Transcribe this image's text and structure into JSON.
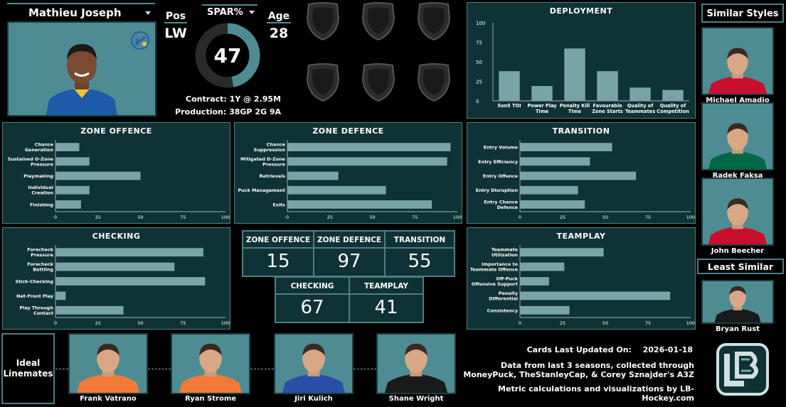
{
  "player": {
    "name": "Mathieu Joseph",
    "pos_label": "Pos",
    "pos": "LW",
    "age_label": "Age",
    "age": "28",
    "spar_label": "SPAR%",
    "spar": "47",
    "spar_value": 47,
    "contract": "Contract:  1Y @ 2.95M",
    "production": "Production:  38GP 2G 9A",
    "team_logo": "blues-note-icon"
  },
  "deployment": {
    "title": "DEPLOYMENT",
    "type": "bar",
    "categories": [
      "5on5 TOI",
      "Power Play Time",
      "Penalty Kill Time",
      "Favourable Zone Starts",
      "Quality of Teammates",
      "Quality of Competition"
    ],
    "values": [
      38,
      19,
      67,
      38,
      17,
      14
    ],
    "ylim": [
      0,
      100
    ],
    "yticks": [
      "100",
      "75",
      "50",
      "25",
      "0"
    ]
  },
  "panels": [
    {
      "key": "zone-offence",
      "title": "ZONE OFFENCE",
      "type": "bar",
      "orientation": "horizontal",
      "categories": [
        "Chance Generation",
        "Sustained O-Zone Pressure",
        "Playmaking",
        "Individual Creation",
        "Finishing"
      ],
      "values": [
        14,
        20,
        50,
        20,
        15
      ],
      "xlim": [
        0,
        100
      ]
    },
    {
      "key": "zone-defence",
      "title": "ZONE DEFENCE",
      "type": "bar",
      "orientation": "horizontal",
      "categories": [
        "Chance Suppression",
        "Mitigated D-Zone Pressure",
        "Retrievals",
        "Puck Management",
        "Exits"
      ],
      "values": [
        96,
        94,
        30,
        58,
        85
      ],
      "xlim": [
        0,
        100
      ]
    },
    {
      "key": "transition",
      "title": "TRANSITION",
      "type": "bar",
      "orientation": "horizontal",
      "categories": [
        "Entry Volume",
        "Entry Efficiency",
        "Entry Offence",
        "Entry Disruption",
        "Entry Chance Defence"
      ],
      "values": [
        54,
        41,
        68,
        34,
        38
      ],
      "xlim": [
        0,
        100
      ]
    },
    {
      "key": "checking",
      "title": "CHECKING",
      "type": "bar",
      "orientation": "horizontal",
      "categories": [
        "Forecheck Pressure",
        "Forecheck Battling",
        "Stick-Checking",
        "Net-Front Play",
        "Play Through Contact"
      ],
      "values": [
        87,
        70,
        88,
        6,
        40
      ],
      "xlim": [
        0,
        100
      ]
    },
    {
      "key": "teamplay",
      "title": "TEAMPLAY",
      "type": "bar",
      "orientation": "horizontal",
      "categories": [
        "Teammate Utilization",
        "Importance to Teammate Offence",
        "Off-Puck Offensive Support",
        "Penalty Differential",
        "Consistency"
      ],
      "values": [
        49,
        26,
        17,
        88,
        29
      ],
      "xlim": [
        0,
        100
      ]
    }
  ],
  "axis_ticks": [
    "0",
    "25",
    "50",
    "75",
    "100"
  ],
  "scores": [
    {
      "label": "ZONE OFFENCE",
      "value": "15"
    },
    {
      "label": "ZONE DEFENCE",
      "value": "97"
    },
    {
      "label": "TRANSITION",
      "value": "55"
    },
    {
      "label": "CHECKING",
      "value": "67"
    },
    {
      "label": "TEAMPLAY",
      "value": "41"
    }
  ],
  "similar": {
    "title": "Similar Styles",
    "players": [
      {
        "name": "Michael Amadio",
        "jersey": "#c8102e"
      },
      {
        "name": "Radek Faksa",
        "jersey": "#006847"
      },
      {
        "name": "John Beecher",
        "jersey": "#c8102e"
      }
    ]
  },
  "least": {
    "title": "Least Similar",
    "players": [
      {
        "name": "Bryan Rust",
        "jersey": "#1a1a1a"
      }
    ]
  },
  "linemates": {
    "title": "Ideal Linemates",
    "players": [
      {
        "name": "Frank Vatrano",
        "jersey": "#f47a38"
      },
      {
        "name": "Ryan Strome",
        "jersey": "#f47a38"
      },
      {
        "name": "Jiri Kulich",
        "jersey": "#2a4fa8"
      },
      {
        "name": "Shane Wright",
        "jersey": "#1a1a1a"
      }
    ]
  },
  "footer": {
    "updated_label": "Cards Last Updated On:",
    "updated": "2026-01-18",
    "source1": "Data from last 3 seasons, collected through",
    "source2": "MoneyPuck, TheStanleyCap, & Corey Sznajder's A3Z",
    "credit": "Metric calculations and visualizations by LB-Hockey.com",
    "logo": "lb-hockey-logo"
  },
  "colors": {
    "panel": "#0f3236",
    "border": "#4e7f84",
    "bar": "#7aa3a8",
    "photo_bg": "#4e8c94"
  }
}
